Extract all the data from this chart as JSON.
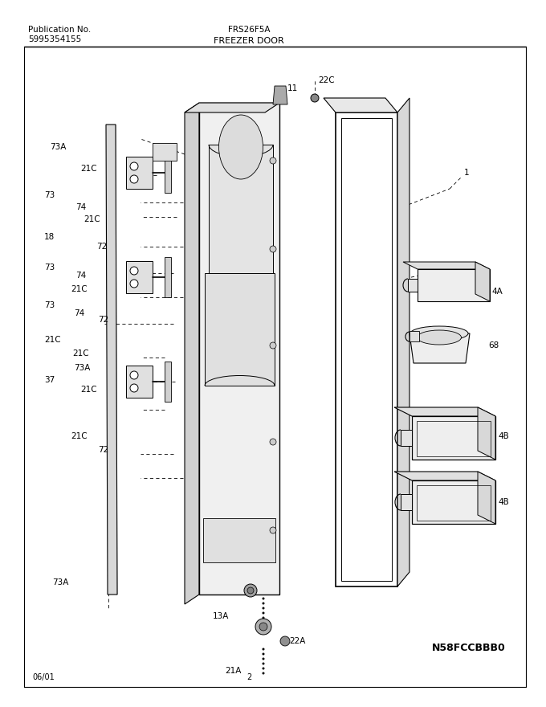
{
  "title_left1": "Publication No.",
  "title_left2": "5995354155",
  "title_center": "FRS26F5A",
  "section_title": "FREEZER DOOR",
  "bottom_left": "06/01",
  "bottom_center": "2",
  "bottom_right": "N58FCCBBB0",
  "bg_color": "#ffffff",
  "line_color": "#000000",
  "fig_width": 6.8,
  "fig_height": 8.8,
  "dpi": 100
}
